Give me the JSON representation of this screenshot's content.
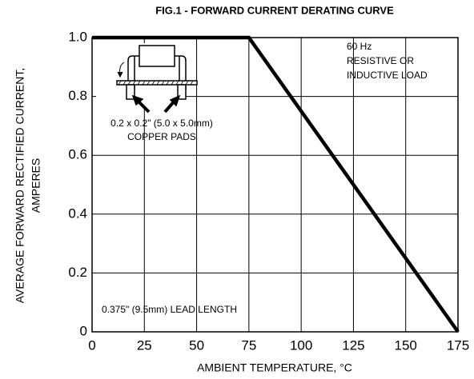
{
  "chart_data": {
    "type": "line",
    "title": "FIG.1 - FORWARD CURRENT DERATING CURVE",
    "xlabel": {
      "text": "AMBIENT TEMPERATURE, °C"
    },
    "ylabel": {
      "lines": [
        "AVERAGE FORWARD RECTIFIED CURRENT,",
        "AMPERES"
      ]
    },
    "x": [
      0,
      75,
      175
    ],
    "series": [
      {
        "color": "#000000",
        "values": [
          1.0,
          1.0,
          0
        ]
      }
    ],
    "xlim": [
      0,
      175
    ],
    "ylim": [
      0,
      1.0
    ],
    "xticks": [
      0,
      25,
      50,
      75,
      100,
      125,
      150,
      175
    ],
    "yticks": [
      0,
      0.2,
      0.4,
      0.6,
      0.8,
      {
        "value": 1.0,
        "label": "1.0"
      }
    ],
    "grid": true,
    "annotations": [
      "60 Hz",
      "RESISTIVE OR",
      "INDUCTIVE LOAD",
      "0.2 x 0.2\" (5.0 x 5.0mm)",
      "COPPER PADS",
      "0.375\" (9.5mm) LEAD LENGTH"
    ]
  }
}
